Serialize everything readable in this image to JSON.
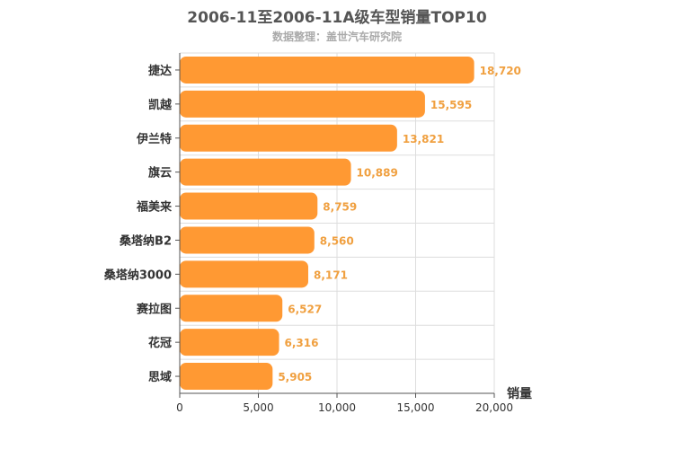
{
  "chart_data": {
    "type": "bar",
    "orientation": "horizontal",
    "title": "2006-11至2006-11A级车型销量TOP10",
    "subtitle": "数据整理：盖世汽车研究院",
    "xlabel": "销量",
    "ylabel": "",
    "xlim": [
      0,
      20000
    ],
    "x_ticks": [
      "0",
      "5,000",
      "10,000",
      "15,000",
      "20,000"
    ],
    "categories": [
      "捷达",
      "凯越",
      "伊兰特",
      "旗云",
      "福美来",
      "桑塔纳B2",
      "桑塔纳3000",
      "赛拉图",
      "花冠",
      "思域"
    ],
    "values": [
      18720,
      15595,
      13821,
      10889,
      8759,
      8560,
      8171,
      6527,
      6316,
      5905
    ],
    "value_labels": [
      "18,720",
      "15,595",
      "13,821",
      "10,889",
      "8,759",
      "8,560",
      "8,171",
      "6,527",
      "6,316",
      "5,905"
    ],
    "bar_color": "#ff9933",
    "label_color": "#f0a040",
    "grid": true,
    "legend": "none"
  }
}
